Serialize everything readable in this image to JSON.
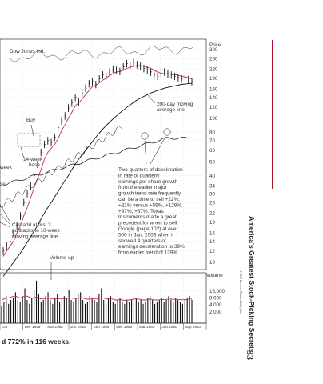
{
  "chart_data": {
    "type": "stock",
    "title": "Dow Jones Ind.",
    "price_label": "Price",
    "volume_label": "Volume",
    "price_ticks": [
      300,
      260,
      220,
      190,
      160,
      140,
      120,
      100,
      80,
      70,
      60,
      50,
      40,
      34,
      30,
      26,
      22,
      19,
      16,
      14,
      12,
      10
    ],
    "volume_ticks": [
      "16,000",
      "8,000",
      "4,000",
      "2,000"
    ],
    "x_labels": [
      "Oct",
      "Dec 1958",
      "Mar 1958",
      "Jun 1958",
      "Sep 1959",
      "Dec 1959",
      "Mar 1960",
      "Jun 1960",
      "Sep 1960"
    ],
    "price_series": [
      {
        "name": "price bars",
        "values": [
          12,
          13,
          14,
          16,
          18,
          21,
          26,
          30,
          34,
          40,
          48,
          58,
          66,
          70,
          68,
          74,
          86,
          96,
          104,
          118,
          128,
          140,
          130,
          150,
          162,
          174,
          180,
          172,
          188,
          200,
          196,
          210,
          220,
          216,
          212,
          228,
          240,
          232,
          244,
          236,
          230,
          222,
          216,
          210,
          200,
          196,
          204,
          210,
          204,
          200,
          196,
          192,
          188,
          192,
          186,
          180
        ]
      },
      {
        "name": "10-week moving average",
        "values": [
          11,
          12,
          13,
          14,
          16,
          18,
          21,
          24,
          28,
          33,
          38,
          44,
          52,
          58,
          62,
          66,
          72,
          82,
          90,
          100,
          110,
          122,
          128,
          136,
          146,
          156,
          166,
          170,
          176,
          184,
          190,
          198,
          204,
          210,
          212,
          216,
          222,
          226,
          230,
          232,
          232,
          230,
          226,
          222,
          216,
          210,
          206,
          204,
          204,
          203,
          201,
          199,
          196,
          194,
          191,
          188
        ]
      },
      {
        "name": "200-day moving average",
        "values": [
          8,
          8.6,
          9.3,
          10,
          10.8,
          11.6,
          12.6,
          13.8,
          15,
          16.5,
          18,
          20,
          22,
          24,
          26,
          28.5,
          31,
          34,
          37,
          40,
          44,
          48,
          52,
          56,
          60,
          64,
          69,
          74,
          79,
          84,
          89,
          94,
          99,
          104,
          109,
          114,
          119,
          124,
          129,
          134,
          138,
          142,
          146,
          150,
          153,
          156,
          159,
          162,
          164,
          166,
          168,
          170,
          172,
          173,
          174,
          175
        ]
      }
    ],
    "annotations": [
      {
        "text": "Buy"
      },
      {
        "text": "14-week base"
      },
      {
        "text": "200-day moving average line"
      },
      {
        "text": "Can add at first 3 pullbacks to 10-week moving average line"
      },
      {
        "text": "Two quarters of deceleration in rate of quarterly earnings per share growth from the earlier major growth trend rate frequently can be a time to sell +22%, +21% versus +59%, +129%, +97%, +87%. Texas Instruments made a great precedent for when to sell Google (page 102) at over 500 in Jan. 2008 when it showed 4 quarters of earnings deceleration to 39% from earlier trend of 129%."
      },
      {
        "text": "Volume up"
      },
      {
        "text": "week"
      },
      {
        "text": "se"
      }
    ],
    "volume_series": [
      9,
      11,
      14,
      10,
      12,
      13,
      16,
      12,
      11,
      14,
      18,
      12,
      10,
      13,
      17,
      22,
      15,
      11,
      12,
      14,
      16,
      12,
      10,
      13,
      15,
      11,
      12,
      14,
      13,
      17,
      12,
      11,
      13,
      15,
      16,
      12,
      10,
      11,
      14,
      13,
      12,
      11,
      15,
      18,
      12,
      10,
      13,
      14,
      11,
      10,
      12,
      13,
      11,
      10,
      12,
      11,
      12,
      14,
      13,
      11,
      12,
      10,
      11,
      13,
      14,
      12,
      10,
      11,
      12,
      13,
      11,
      12,
      14,
      12,
      11,
      13,
      12,
      11,
      10,
      12,
      13,
      14,
      12
    ],
    "volume_average": [
      12,
      12.5,
      13,
      13,
      13.5,
      13.8,
      14,
      13.5,
      13,
      13.5,
      14,
      14,
      13.5,
      13,
      13.2,
      13.5,
      13,
      12.5,
      12.5,
      12.8,
      13,
      12.8,
      12.5,
      12.5,
      12.8,
      12.6,
      12.5,
      12.6,
      12.8,
      13,
      13,
      12.8,
      12.8,
      13,
      13.2,
      13,
      12.6,
      12.4,
      12.5,
      12.6,
      12.6,
      12.5,
      12.8,
      13.2,
      13,
      12.6,
      12.5,
      12.6,
      12.4,
      12,
      12,
      12.2,
      12,
      11.8,
      12,
      12,
      12.2,
      12.5,
      12.6,
      12.4,
      12.3,
      12,
      12,
      12.2,
      12.4,
      12.3,
      12,
      12,
      12.1,
      12.3,
      12.2,
      12.3,
      12.5,
      12.4,
      12.3,
      12.4,
      12.3,
      12.2,
      12.1,
      12.2,
      12.3,
      12.5,
      12.4
    ]
  },
  "caption": "d 772% in 116 weeks.",
  "side_title": "America's Greatest Stock-Picking Secrets",
  "page_number": "33",
  "copyright": "© 2009 Investor's Business Daily, Inc.",
  "colors": {
    "price": "#111111",
    "ma10": "#c0304a",
    "ma200": "#111111",
    "volume_avg": "#c0304a",
    "grid": "#d9d9d9",
    "accent": "#a8102c"
  }
}
